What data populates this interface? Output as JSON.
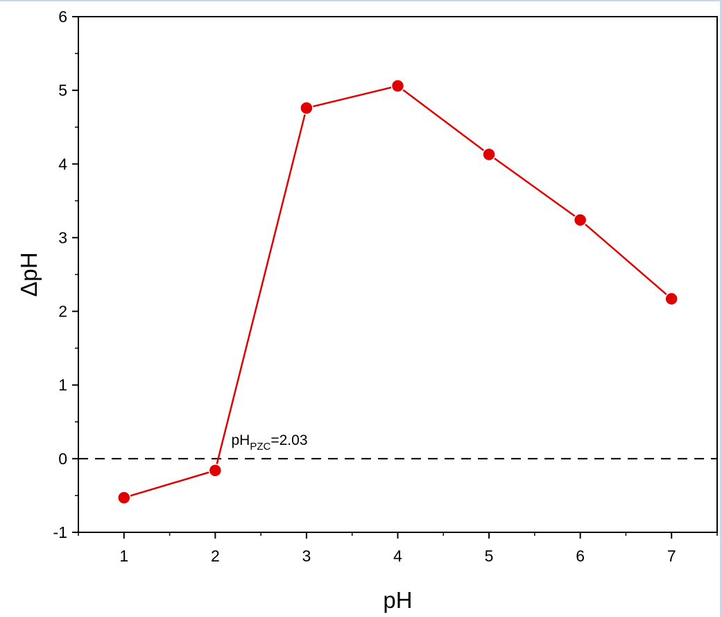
{
  "chart_data": {
    "type": "line",
    "xlabel": "pH",
    "ylabel": "ΔpH",
    "xlim": [
      0.5,
      7.5
    ],
    "ylim": [
      -1,
      6
    ],
    "x_ticks": [
      1,
      2,
      3,
      4,
      5,
      6,
      7
    ],
    "y_ticks": [
      -1,
      0,
      1,
      2,
      3,
      4,
      5,
      6
    ],
    "grid": false,
    "series": [
      {
        "x": [
          1,
          2,
          3,
          4,
          5,
          6,
          7
        ],
        "y": [
          -0.53,
          -0.16,
          4.76,
          5.06,
          4.13,
          3.24,
          2.17
        ],
        "color": "#e00000",
        "marker": "circle"
      }
    ],
    "reference_line": {
      "y": 0,
      "style": "dashed",
      "color": "#000000"
    },
    "annotation": {
      "text_main": "pH",
      "text_sub": "PZC",
      "text_value": "=2.03",
      "x": 2.1,
      "y": 0.1
    }
  }
}
